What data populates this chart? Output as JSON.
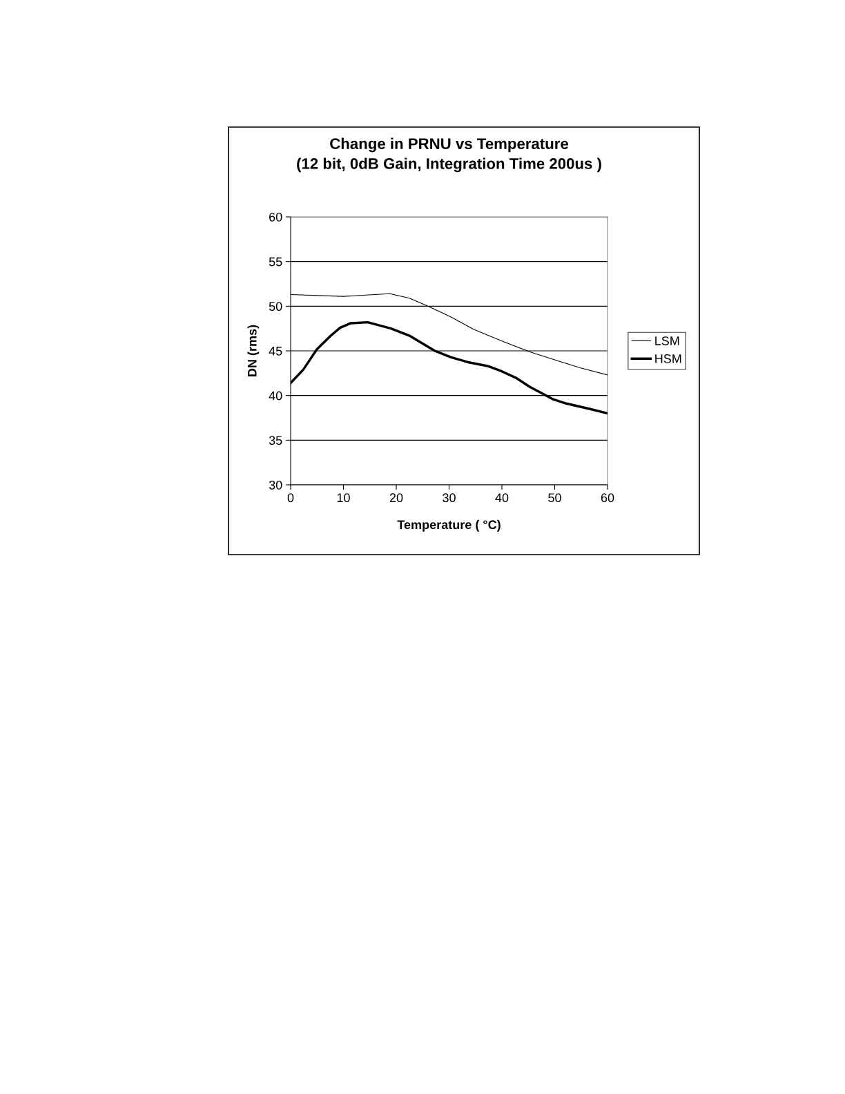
{
  "chart_data": {
    "type": "line",
    "title": "Change in PRNU vs Temperature\n(12 bit, 0dB Gain, Integration Time 200us )",
    "xlabel": "Temperature ( °C)",
    "ylabel": "DN (rms)",
    "series": [
      {
        "name": "LSM",
        "color": "#000000",
        "x": [
          0,
          10,
          18.8,
          22.5,
          26,
          30.3,
          34.7,
          40,
          45.2,
          50,
          54.8,
          60
        ],
        "values": [
          51.3,
          51.1,
          51.4,
          50.9,
          50.0,
          48.8,
          47.4,
          46.1,
          44.9,
          44.0,
          43.1,
          42.3
        ]
      },
      {
        "name": "HSM",
        "color": "#000000",
        "x": [
          0,
          2.4,
          5,
          7.6,
          9.4,
          11.4,
          14.6,
          19,
          22.5,
          27.3,
          30.3,
          33.8,
          37.3,
          40,
          42.6,
          45.2,
          49.6,
          52.2,
          56.6,
          60
        ],
        "values": [
          41.4,
          42.9,
          45.2,
          46.7,
          47.6,
          48.1,
          48.2,
          47.5,
          46.7,
          45.0,
          44.3,
          43.7,
          43.3,
          42.7,
          42.0,
          41.0,
          39.6,
          39.1,
          38.5,
          38.0
        ]
      }
    ],
    "xlim": [
      0,
      60
    ],
    "xticks": [
      0,
      10,
      20,
      30,
      40,
      50,
      60
    ],
    "ylim": [
      30,
      60
    ],
    "yticks": [
      30,
      35,
      40,
      45,
      50,
      55,
      60
    ],
    "grid": "y",
    "legend": "right"
  }
}
